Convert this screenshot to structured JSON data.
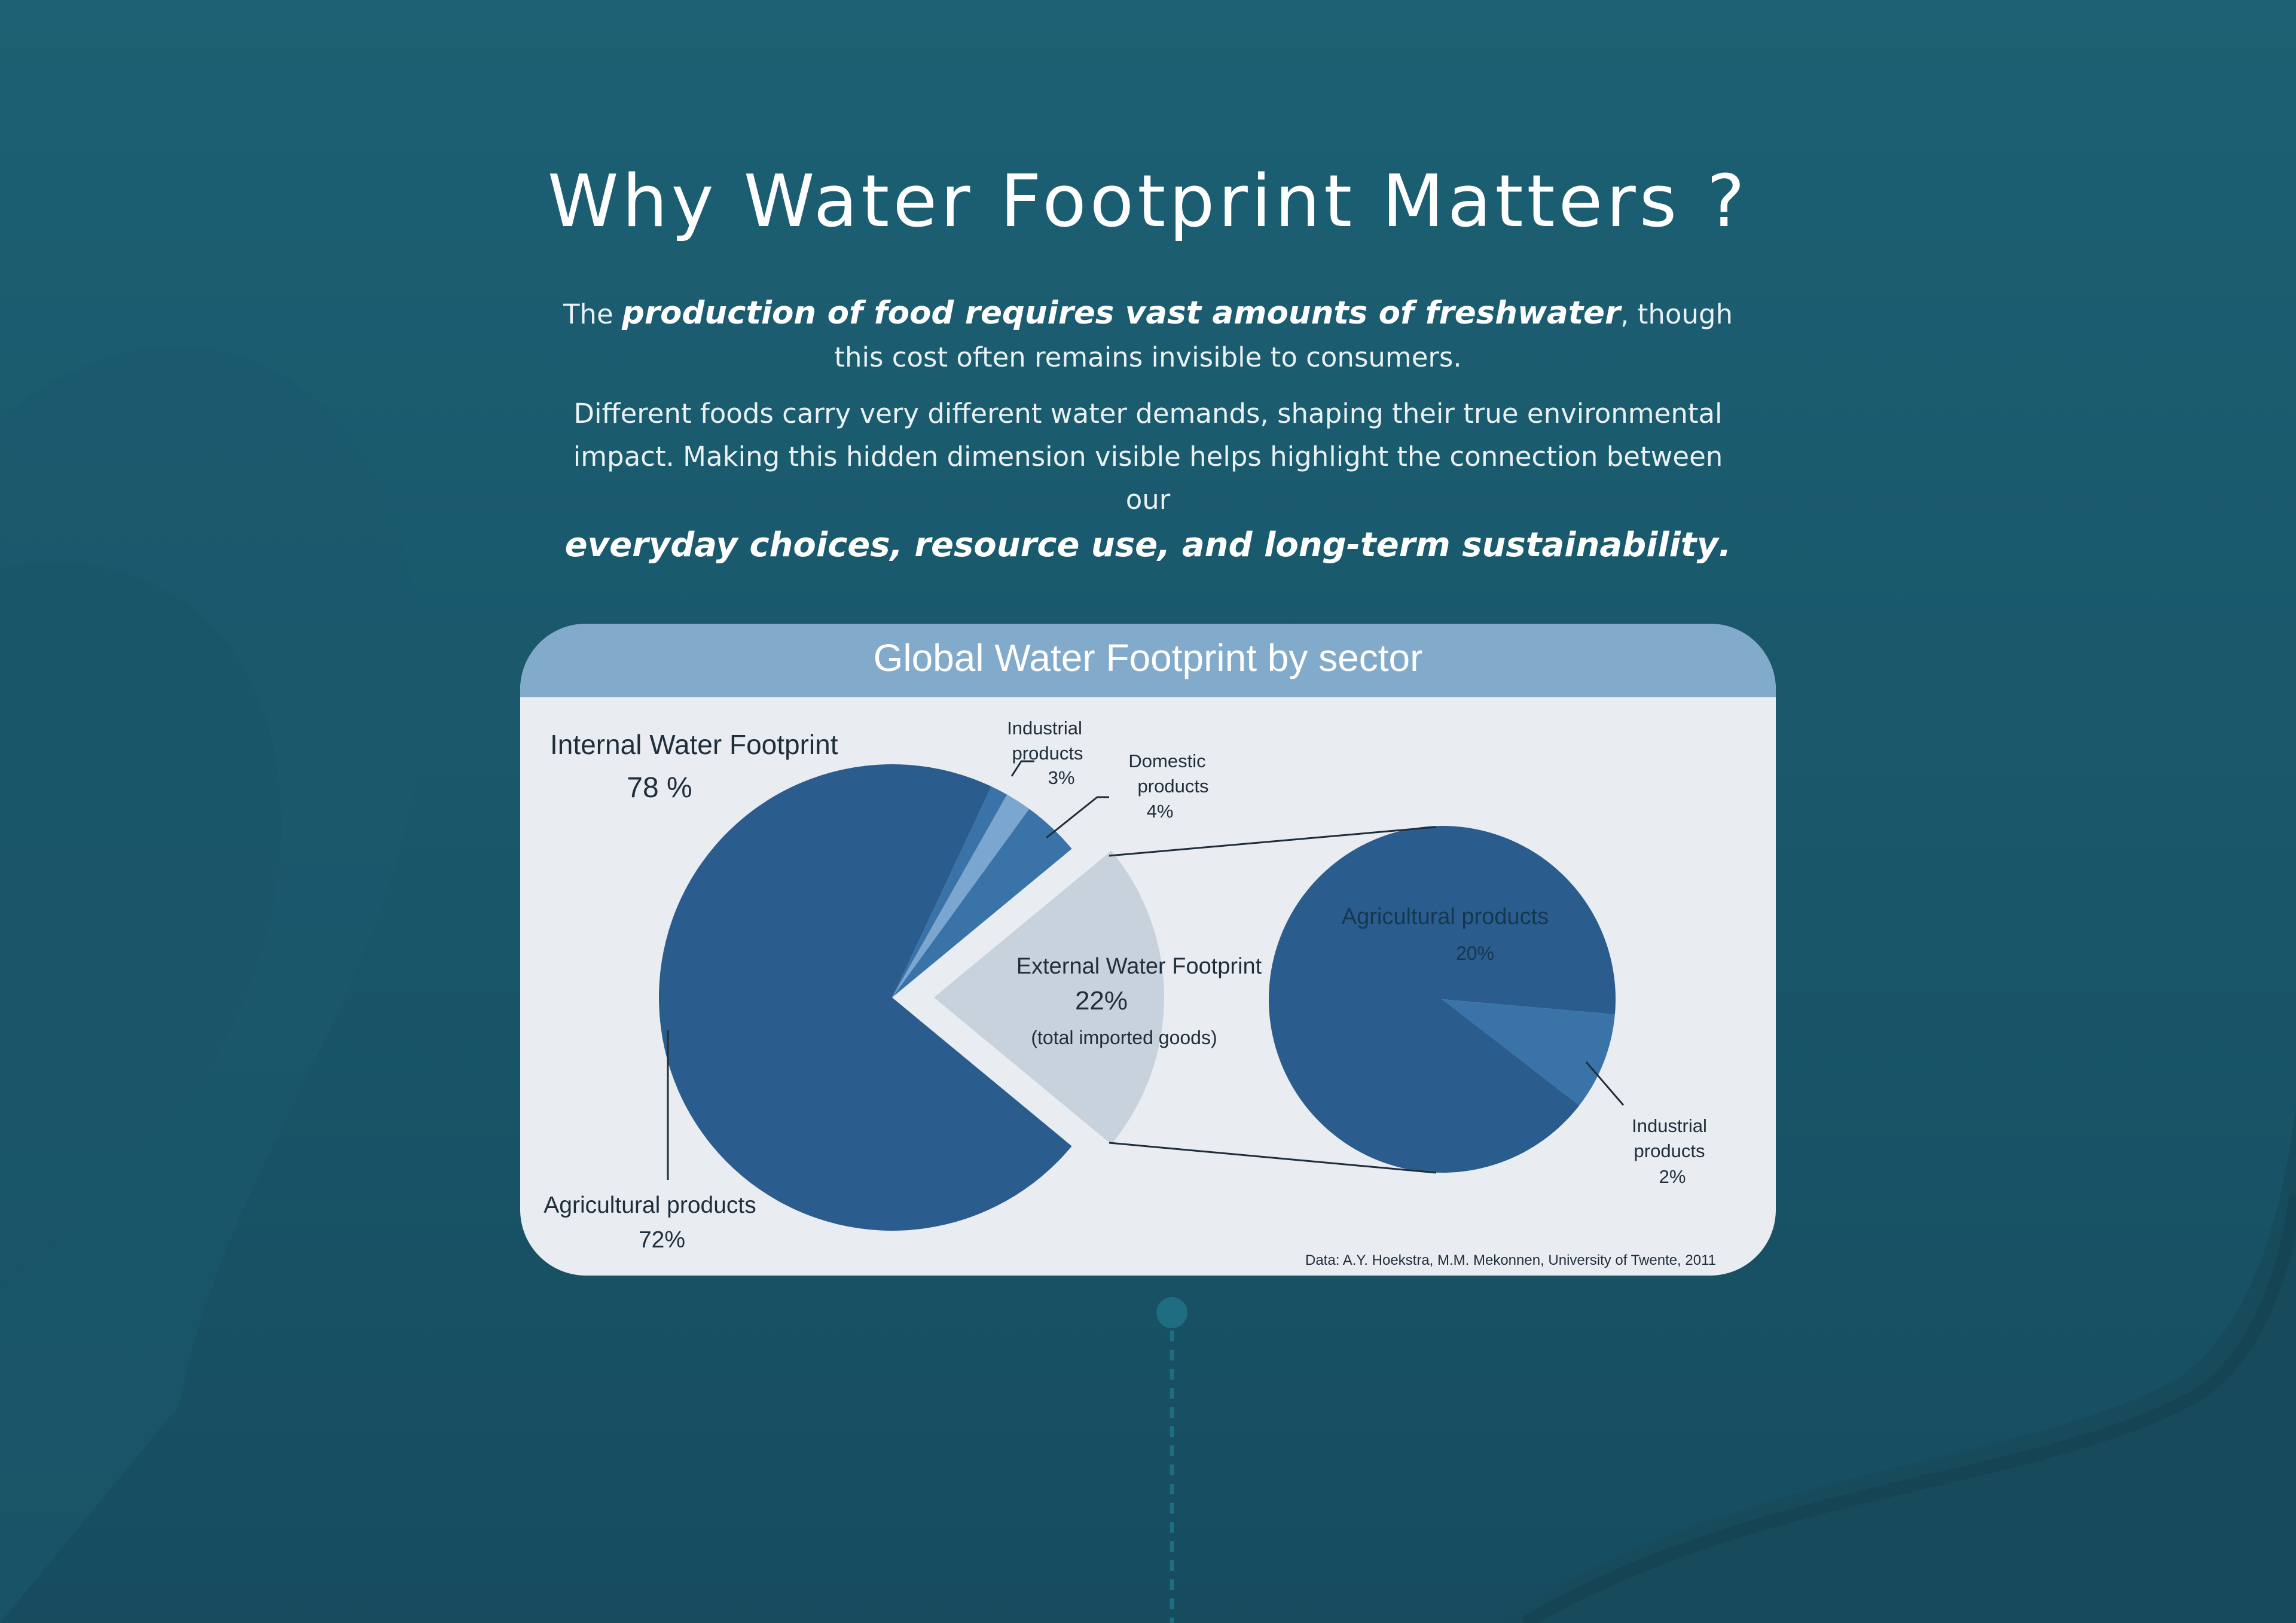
{
  "page": {
    "title": "Why Water Footprint Matters ?",
    "intro": {
      "p1_pre": "The ",
      "p1_emph": "production of food requires vast amounts of freshwater",
      "p1_post": ", though this cost often remains invisible to consumers.",
      "p2": "Different foods carry very different water demands, shaping their true environmental impact. Making this hidden dimension visible helps highlight the connection between our",
      "p3_emph": "everyday choices, resource use, and long-term sustainability",
      "p3_post": "."
    }
  },
  "colors": {
    "background": "#1d6073",
    "card": "#e9ecf1",
    "card_header": "#82aacb",
    "agricultural": "#2b5c8e",
    "industrial": "#3a73a8",
    "industrial_light": "#7aa6cf",
    "external": "#c8d2dc",
    "label": "#1f2e3a"
  },
  "chart_data": {
    "type": "pie",
    "title": "Global Water Footprint by sector",
    "main": {
      "groups": [
        {
          "name": "Internal Water Footprint",
          "label": "78 %",
          "value": 78
        },
        {
          "name": "External Water Footprint",
          "label": "22%",
          "value": 22,
          "note": "(total imported goods)"
        }
      ],
      "slices": [
        {
          "name": "Agricultural products",
          "group": "internal",
          "value": 72,
          "label": "72%"
        },
        {
          "name": "Industrial products",
          "group": "internal",
          "value": 3,
          "label": "3%"
        },
        {
          "name": "Domestic products",
          "group": "internal",
          "value": 4,
          "label": "4%"
        }
      ]
    },
    "breakdown": {
      "of": "External Water Footprint",
      "slices": [
        {
          "name": "Agricultural products",
          "value": 20,
          "label": "20%"
        },
        {
          "name": "Industrial products",
          "value": 2,
          "label": "2%"
        }
      ]
    },
    "labels": {
      "internal_title": "Internal Water Footprint",
      "internal_pct": "78 %",
      "external_title": "External Water Footprint",
      "external_pct": "22%",
      "external_note": "(total imported goods)",
      "ind_l1": "Industrial",
      "ind_l2": "products",
      "ind_l3": "3%",
      "dom_l1": "Domestic",
      "dom_l2": "products",
      "dom_l3": "4%",
      "agri_l1": "Agricultural products",
      "agri_l2": "72%",
      "ext_agri_l1": "Agricultural products",
      "ext_agri_l2": "20%",
      "ext_ind_l1": "Industrial",
      "ext_ind_l2": "products",
      "ext_ind_l3": "2%"
    },
    "source": "Data:  A.Y. Hoekstra, M.M. Mekonnen, University of Twente, 2011"
  }
}
